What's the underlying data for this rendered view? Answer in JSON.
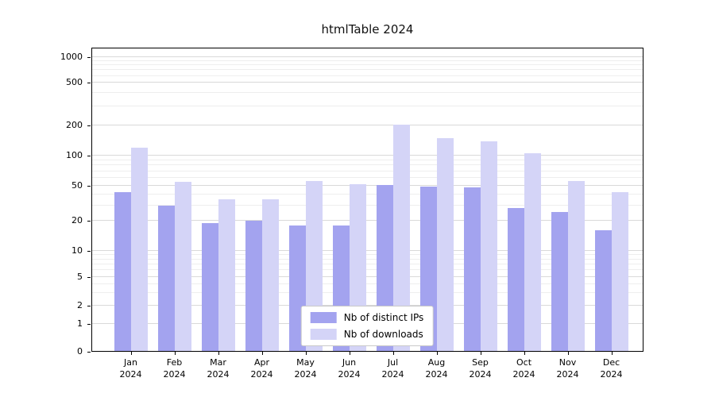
{
  "chart_data": {
    "type": "bar",
    "title": "htmlTable 2024",
    "categories": [
      {
        "month": "Jan",
        "year": "2024"
      },
      {
        "month": "Feb",
        "year": "2024"
      },
      {
        "month": "Mar",
        "year": "2024"
      },
      {
        "month": "Apr",
        "year": "2024"
      },
      {
        "month": "May",
        "year": "2024"
      },
      {
        "month": "Jun",
        "year": "2024"
      },
      {
        "month": "Jul",
        "year": "2024"
      },
      {
        "month": "Aug",
        "year": "2024"
      },
      {
        "month": "Sep",
        "year": "2024"
      },
      {
        "month": "Oct",
        "year": "2024"
      },
      {
        "month": "Nov",
        "year": "2024"
      },
      {
        "month": "Dec",
        "year": "2024"
      }
    ],
    "series": [
      {
        "name": "Nb of distinct IPs",
        "color": "#a3a3ef",
        "values": [
          42,
          30,
          19,
          20,
          18,
          18,
          51,
          49,
          48,
          28,
          25,
          16
        ]
      },
      {
        "name": "Nb of downloads",
        "color": "#d4d4f7",
        "values": [
          120,
          55,
          35,
          35,
          56,
          52,
          205,
          150,
          140,
          105,
          56,
          42
        ]
      }
    ],
    "yscale": "symlog",
    "yticks": [
      {
        "v": 0,
        "f": 0.0
      },
      {
        "v": 1,
        "f": 0.094
      },
      {
        "v": 2,
        "f": 0.156
      },
      {
        "v": 5,
        "f": 0.253
      },
      {
        "v": 10,
        "f": 0.342
      },
      {
        "v": 20,
        "f": 0.445
      },
      {
        "v": 50,
        "f": 0.563
      },
      {
        "v": 100,
        "f": 0.666
      },
      {
        "v": 200,
        "f": 0.768
      },
      {
        "v": 500,
        "f": 0.914
      },
      {
        "v": 1000,
        "f": 1.0
      }
    ],
    "minor_yticks": [
      3,
      4,
      6,
      7,
      8,
      9,
      30,
      40,
      60,
      70,
      80,
      90,
      300,
      400,
      600,
      700,
      800,
      900
    ],
    "grid": true,
    "legend_position": "lower center"
  }
}
